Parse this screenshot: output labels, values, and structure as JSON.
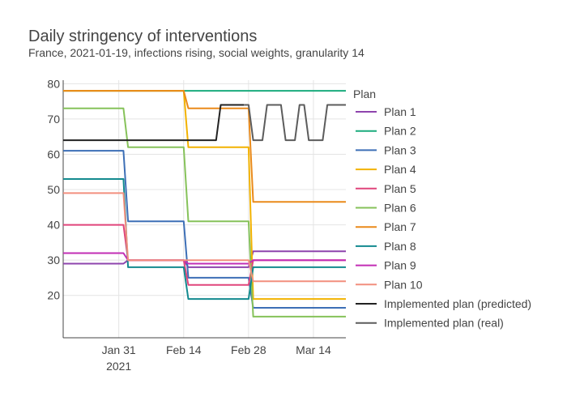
{
  "chart_data": {
    "type": "line",
    "title": "Daily stringency of interventions",
    "subtitle": "France, 2021-01-19, infections rising, social weights, granularity 14",
    "xlabel": "",
    "ylabel": "",
    "xlim": [
      "2021-01-19",
      "2021-03-21"
    ],
    "ylim": [
      8,
      81
    ],
    "xticks": [
      {
        "date": "2021-01-31",
        "label": "Jan 31",
        "sublabel": "2021"
      },
      {
        "date": "2021-02-14",
        "label": "Feb 14",
        "sublabel": ""
      },
      {
        "date": "2021-02-28",
        "label": "Feb 28",
        "sublabel": ""
      },
      {
        "date": "2021-03-14",
        "label": "Mar 14",
        "sublabel": ""
      }
    ],
    "yticks": [
      20,
      30,
      40,
      50,
      60,
      70,
      80
    ],
    "grid": true,
    "legend": {
      "title": "Plan",
      "placement": "right"
    },
    "series": [
      {
        "name": "Plan 1",
        "color": "#8e44ad",
        "points": [
          [
            "2021-01-19",
            29
          ],
          [
            "2021-02-01",
            29
          ],
          [
            "2021-02-02",
            30
          ],
          [
            "2021-02-14",
            30
          ],
          [
            "2021-02-15",
            28
          ],
          [
            "2021-02-28",
            28
          ],
          [
            "2021-03-01",
            32.5
          ],
          [
            "2021-03-21",
            32.5
          ]
        ]
      },
      {
        "name": "Plan 2",
        "color": "#1aab7d",
        "points": [
          [
            "2021-01-19",
            78
          ],
          [
            "2021-03-21",
            78
          ]
        ]
      },
      {
        "name": "Plan 3",
        "color": "#3d6fb6",
        "points": [
          [
            "2021-01-19",
            61
          ],
          [
            "2021-02-01",
            61
          ],
          [
            "2021-02-02",
            41
          ],
          [
            "2021-02-14",
            41
          ],
          [
            "2021-02-15",
            25
          ],
          [
            "2021-02-28",
            25
          ],
          [
            "2021-03-01",
            16.5
          ],
          [
            "2021-03-21",
            16.5
          ]
        ]
      },
      {
        "name": "Plan 4",
        "color": "#f2b200",
        "points": [
          [
            "2021-01-19",
            78
          ],
          [
            "2021-02-14",
            78
          ],
          [
            "2021-02-15",
            62
          ],
          [
            "2021-02-28",
            62
          ],
          [
            "2021-03-01",
            19
          ],
          [
            "2021-03-21",
            19
          ]
        ]
      },
      {
        "name": "Plan 5",
        "color": "#e0457b",
        "points": [
          [
            "2021-01-19",
            40
          ],
          [
            "2021-02-01",
            40
          ],
          [
            "2021-02-02",
            30
          ],
          [
            "2021-02-14",
            30
          ],
          [
            "2021-02-15",
            23
          ],
          [
            "2021-02-28",
            23
          ],
          [
            "2021-03-01",
            30
          ],
          [
            "2021-03-21",
            30
          ]
        ]
      },
      {
        "name": "Plan 6",
        "color": "#86c25a",
        "points": [
          [
            "2021-01-19",
            73
          ],
          [
            "2021-02-01",
            73
          ],
          [
            "2021-02-02",
            62
          ],
          [
            "2021-02-14",
            62
          ],
          [
            "2021-02-15",
            41
          ],
          [
            "2021-02-28",
            41
          ],
          [
            "2021-03-01",
            14
          ],
          [
            "2021-03-21",
            14
          ]
        ]
      },
      {
        "name": "Plan 7",
        "color": "#ea8a1a",
        "points": [
          [
            "2021-01-19",
            78
          ],
          [
            "2021-02-14",
            78
          ],
          [
            "2021-02-15",
            73
          ],
          [
            "2021-02-28",
            73
          ],
          [
            "2021-03-01",
            46.5
          ],
          [
            "2021-03-21",
            46.5
          ]
        ]
      },
      {
        "name": "Plan 8",
        "color": "#138a8f",
        "points": [
          [
            "2021-01-19",
            53
          ],
          [
            "2021-02-01",
            53
          ],
          [
            "2021-02-02",
            28
          ],
          [
            "2021-02-14",
            28
          ],
          [
            "2021-02-15",
            19
          ],
          [
            "2021-02-28",
            19
          ],
          [
            "2021-03-01",
            28
          ],
          [
            "2021-03-21",
            28
          ]
        ]
      },
      {
        "name": "Plan 9",
        "color": "#c22eb5",
        "points": [
          [
            "2021-01-19",
            32
          ],
          [
            "2021-02-01",
            32
          ],
          [
            "2021-02-02",
            30
          ],
          [
            "2021-02-14",
            30
          ],
          [
            "2021-02-15",
            29
          ],
          [
            "2021-02-28",
            29
          ],
          [
            "2021-03-01",
            30
          ],
          [
            "2021-03-21",
            30
          ]
        ]
      },
      {
        "name": "Plan 10",
        "color": "#f28f7e",
        "points": [
          [
            "2021-01-19",
            49
          ],
          [
            "2021-02-01",
            49
          ],
          [
            "2021-02-02",
            30
          ],
          [
            "2021-02-14",
            30
          ],
          [
            "2021-02-15",
            30
          ],
          [
            "2021-02-28",
            30
          ],
          [
            "2021-03-01",
            24
          ],
          [
            "2021-03-21",
            24
          ]
        ]
      },
      {
        "name": "Implemented plan (predicted)",
        "color": "#222222",
        "points": [
          [
            "2021-01-19",
            64
          ],
          [
            "2021-02-21",
            64
          ],
          [
            "2021-02-22",
            74
          ],
          [
            "2021-02-27",
            74
          ]
        ]
      },
      {
        "name": "Implemented plan (real)",
        "color": "#5c5c5c",
        "points": [
          [
            "2021-02-27",
            74
          ],
          [
            "2021-02-28",
            74
          ],
          [
            "2021-03-01",
            64
          ],
          [
            "2021-03-03",
            64
          ],
          [
            "2021-03-04",
            74
          ],
          [
            "2021-03-07",
            74
          ],
          [
            "2021-03-08",
            64
          ],
          [
            "2021-03-10",
            64
          ],
          [
            "2021-03-11",
            74
          ],
          [
            "2021-03-12",
            74
          ],
          [
            "2021-03-13",
            64
          ],
          [
            "2021-03-16",
            64
          ],
          [
            "2021-03-17",
            74
          ],
          [
            "2021-03-21",
            74
          ]
        ]
      }
    ]
  }
}
